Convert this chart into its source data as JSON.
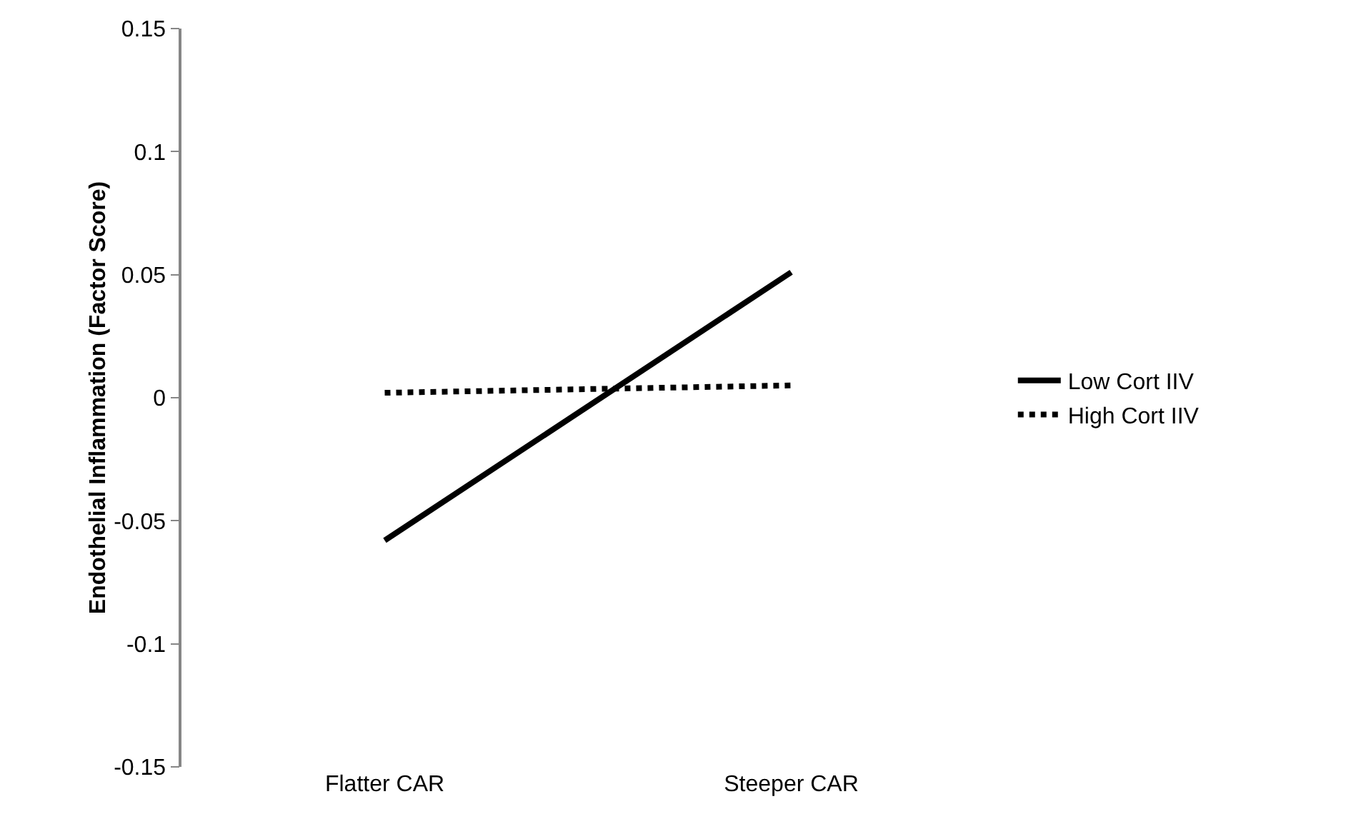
{
  "chart_data": {
    "type": "line",
    "ylabel": "Endothelial Inflammation (Factor Score)",
    "categories": [
      "Flatter CAR",
      "Steeper CAR"
    ],
    "series": [
      {
        "name": "Low Cort IIV",
        "color": "#000000",
        "line_style": "solid",
        "values": [
          -0.058,
          0.051
        ]
      },
      {
        "name": "High Cort IIV",
        "color": "#000000",
        "line_style": "dotted",
        "values": [
          0.002,
          0.005
        ]
      }
    ],
    "ylim": [
      -0.15,
      0.15
    ],
    "yticks": [
      -0.15,
      -0.1,
      -0.05,
      0,
      0.05,
      0.1,
      0.15
    ],
    "grid": false,
    "legend": "right",
    "marker": "none"
  }
}
